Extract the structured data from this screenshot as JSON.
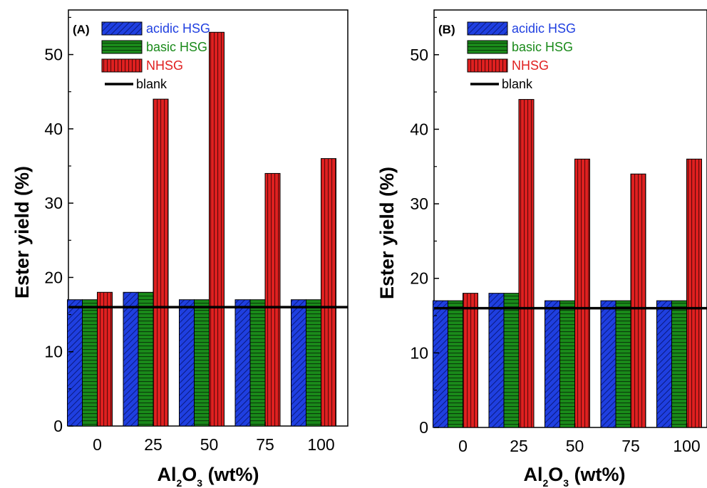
{
  "chart_data": [
    {
      "type": "bar",
      "panel_label": "(A)",
      "categories": [
        "0",
        "25",
        "50",
        "75",
        "100"
      ],
      "series": [
        {
          "name": "acidic HSG",
          "color": "#1f3fe0",
          "pattern": "diagonal-hatch",
          "values": [
            17,
            18,
            17,
            17,
            17
          ]
        },
        {
          "name": "basic HSG",
          "color": "#1a8a1a",
          "pattern": "horizontal-hatch",
          "values": [
            17,
            18,
            17,
            17,
            17
          ]
        },
        {
          "name": "NHSG",
          "color": "#e02020",
          "pattern": "vertical-hatch",
          "values": [
            18,
            44,
            53,
            34,
            36
          ]
        }
      ],
      "reference_line": {
        "name": "blank",
        "value": 16,
        "color": "#000000"
      },
      "xlabel": {
        "main": "Al",
        "sub1": "2",
        "mid": "O",
        "sub2": "3",
        "rest": " (wt%)"
      },
      "ylabel": "Ester yield (%)",
      "ylim": [
        0,
        56
      ],
      "yticks": [
        "0",
        "10",
        "20",
        "30",
        "40",
        "50"
      ],
      "legend_position": "top-left"
    },
    {
      "type": "bar",
      "panel_label": "(B)",
      "categories": [
        "0",
        "25",
        "50",
        "75",
        "100"
      ],
      "series": [
        {
          "name": "acidic HSG",
          "color": "#1f3fe0",
          "pattern": "diagonal-hatch",
          "values": [
            17,
            18,
            17,
            17,
            17
          ]
        },
        {
          "name": "basic HSG",
          "color": "#1a8a1a",
          "pattern": "horizontal-hatch",
          "values": [
            17,
            18,
            17,
            17,
            17
          ]
        },
        {
          "name": "NHSG",
          "color": "#e02020",
          "pattern": "vertical-hatch",
          "values": [
            18,
            44,
            36,
            34,
            36
          ]
        }
      ],
      "reference_line": {
        "name": "blank",
        "value": 16,
        "color": "#000000"
      },
      "xlabel": {
        "main": "Al",
        "sub1": "2",
        "mid": "O",
        "sub2": "3",
        "rest": " (wt%)"
      },
      "ylabel": "Ester yield (%)",
      "ylim": [
        0,
        56
      ],
      "yticks": [
        "0",
        "10",
        "20",
        "30",
        "40",
        "50"
      ],
      "legend_position": "top-left"
    }
  ]
}
